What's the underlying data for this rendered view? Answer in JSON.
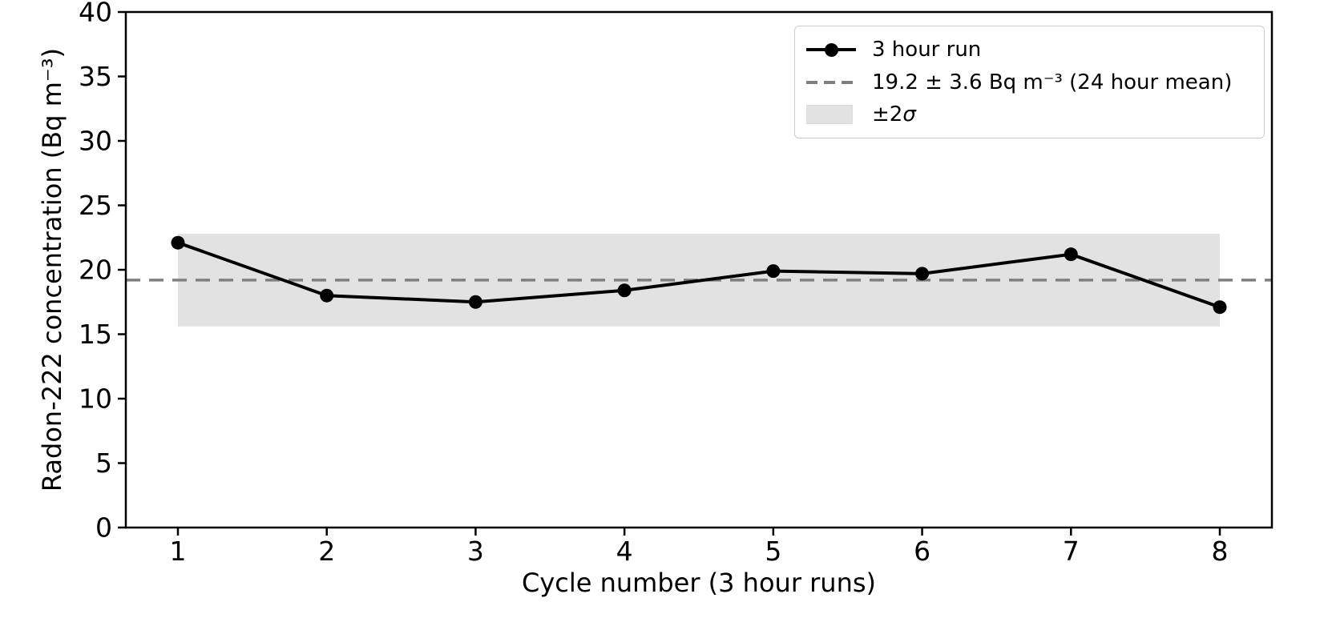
{
  "chart_data": {
    "type": "line",
    "title": "",
    "xlabel": "Cycle number (3 hour runs)",
    "ylabel": "Radon-222 concentration (Bq m⁻³)",
    "x": [
      1,
      2,
      3,
      4,
      5,
      6,
      7,
      8
    ],
    "series": [
      {
        "name": "3 hour run",
        "values": [
          22.1,
          18.0,
          17.5,
          18.4,
          19.9,
          19.7,
          21.2,
          17.1
        ],
        "color": "#000000",
        "marker": "circle",
        "style": "solid"
      }
    ],
    "mean_line": {
      "value": 19.2,
      "uncertainty_2sigma": 3.6,
      "label": "19.2 ± 3.6 Bq m⁻³ (24 hour mean)",
      "color": "#7f7f7f",
      "style": "dashed"
    },
    "band": {
      "label": "±2σ",
      "low": 15.6,
      "high": 22.8,
      "x_start": 1,
      "x_end": 8,
      "color": "#e2e2e2"
    },
    "xlim": [
      0.65,
      8.35
    ],
    "ylim": [
      0,
      40
    ],
    "xtick_values": [
      1,
      2,
      3,
      4,
      5,
      6,
      7,
      8
    ],
    "xticks": [
      "1",
      "2",
      "3",
      "4",
      "5",
      "6",
      "7",
      "8"
    ],
    "ytick_values": [
      0,
      5,
      10,
      15,
      20,
      25,
      30,
      35,
      40
    ],
    "yticks": [
      "0",
      "5",
      "10",
      "15",
      "20",
      "25",
      "30",
      "35",
      "40"
    ],
    "grid": false,
    "legend_position": "upper right"
  },
  "legend": {
    "items": [
      {
        "sample": "line-with-marker",
        "label": "3 hour run"
      },
      {
        "sample": "dashed-line",
        "label": "19.2 ± 3.6 Bq m⁻³ (24 hour mean)"
      },
      {
        "sample": "filled-patch",
        "label_prefix": "±2",
        "label_sigma": "σ"
      }
    ]
  },
  "colors": {
    "series_line": "#000000",
    "mean_dashed": "#7f7f7f",
    "sigma_band": "#e2e2e2",
    "axes_and_text": "#000000",
    "legend_border": "#cccccc",
    "background": "#ffffff"
  }
}
